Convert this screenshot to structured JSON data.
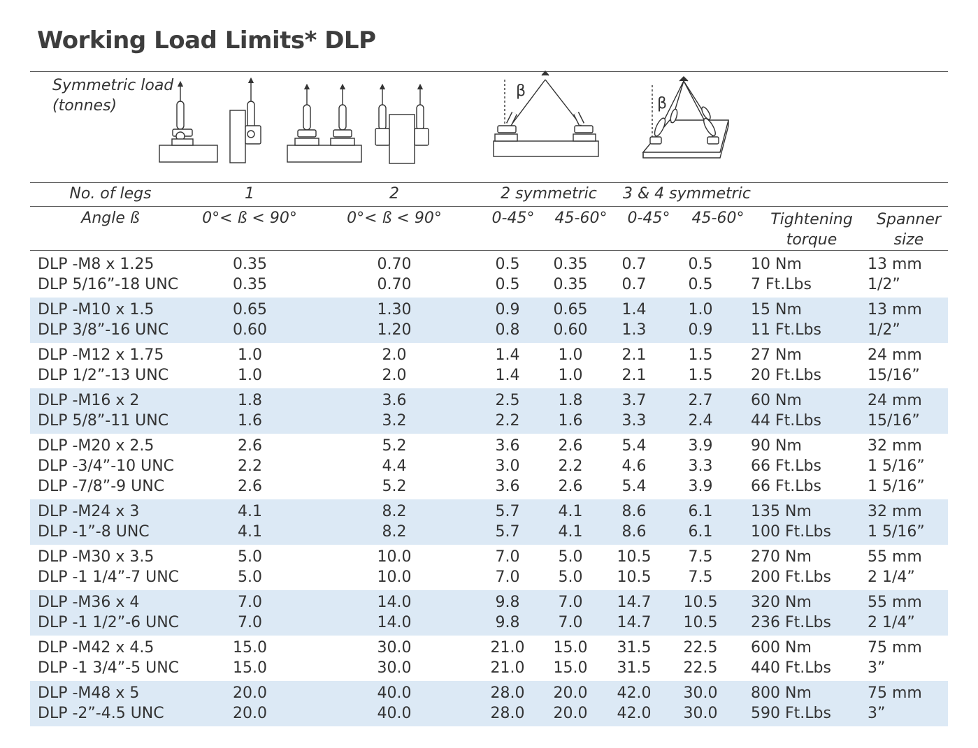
{
  "title": "Working Load Limits* DLP",
  "symmetric_load_label": [
    "Symmetric load",
    "(tonnes)"
  ],
  "beta_symbol": "β",
  "header": {
    "legs_label": "No. of legs",
    "legs": [
      "1",
      "2",
      "2 symmetric",
      "3 & 4 symmetric"
    ],
    "angle_label": "Angle ß",
    "angles": [
      "0°< ß < 90°",
      "0°< ß < 90°",
      "0-45°",
      "45-60°",
      "0-45°",
      "45-60°"
    ],
    "torque": [
      "Tightening",
      "torque"
    ],
    "spanner": [
      "Spanner",
      "size"
    ]
  },
  "groups": [
    {
      "rows": [
        [
          "DLP -M8 x 1.25",
          "0.35",
          "0.70",
          "0.5",
          "0.35",
          "0.7",
          "0.5",
          "10 Nm",
          "13 mm"
        ],
        [
          "DLP 5/16”-18 UNC",
          "0.35",
          "0.70",
          "0.5",
          "0.35",
          "0.7",
          "0.5",
          "7 Ft.Lbs",
          "1/2”"
        ]
      ]
    },
    {
      "rows": [
        [
          "DLP -M10 x 1.5",
          "0.65",
          "1.30",
          "0.9",
          "0.65",
          "1.4",
          "1.0",
          "15 Nm",
          "13 mm"
        ],
        [
          "DLP 3/8”-16 UNC",
          "0.60",
          "1.20",
          "0.8",
          "0.60",
          "1.3",
          "0.9",
          "11 Ft.Lbs",
          "1/2”"
        ]
      ]
    },
    {
      "rows": [
        [
          "DLP -M12 x 1.75",
          "1.0",
          "2.0",
          "1.4",
          "1.0",
          "2.1",
          "1.5",
          "27 Nm",
          "24 mm"
        ],
        [
          "DLP 1/2”-13 UNC",
          "1.0",
          "2.0",
          "1.4",
          "1.0",
          "2.1",
          "1.5",
          "20 Ft.Lbs",
          "15/16”"
        ]
      ]
    },
    {
      "rows": [
        [
          "DLP -M16 x 2",
          "1.8",
          "3.6",
          "2.5",
          "1.8",
          "3.7",
          "2.7",
          "60 Nm",
          "24 mm"
        ],
        [
          "DLP 5/8”-11 UNC",
          "1.6",
          "3.2",
          "2.2",
          "1.6",
          "3.3",
          "2.4",
          "44 Ft.Lbs",
          "15/16”"
        ]
      ]
    },
    {
      "rows": [
        [
          "DLP -M20 x 2.5",
          "2.6",
          "5.2",
          "3.6",
          "2.6",
          "5.4",
          "3.9",
          "90 Nm",
          "32 mm"
        ],
        [
          "DLP -3/4”-10 UNC",
          "2.2",
          "4.4",
          "3.0",
          "2.2",
          "4.6",
          "3.3",
          "66 Ft.Lbs",
          "1 5/16”"
        ],
        [
          "DLP -7/8”-9 UNC",
          "2.6",
          "5.2",
          "3.6",
          "2.6",
          "5.4",
          "3.9",
          "66 Ft.Lbs",
          "1 5/16”"
        ]
      ]
    },
    {
      "rows": [
        [
          "DLP -M24 x 3",
          "4.1",
          "8.2",
          "5.7",
          "4.1",
          "8.6",
          "6.1",
          "135 Nm",
          "32 mm"
        ],
        [
          "DLP -1”-8 UNC",
          "4.1",
          "8.2",
          "5.7",
          "4.1",
          "8.6",
          "6.1",
          "100 Ft.Lbs",
          "1 5/16”"
        ]
      ]
    },
    {
      "rows": [
        [
          "DLP -M30 x 3.5",
          "5.0",
          "10.0",
          "7.0",
          "5.0",
          "10.5",
          "7.5",
          "270 Nm",
          "55 mm"
        ],
        [
          "DLP -1 1/4”-7 UNC",
          "5.0",
          "10.0",
          "7.0",
          "5.0",
          "10.5",
          "7.5",
          "200 Ft.Lbs",
          "2 1/4”"
        ]
      ]
    },
    {
      "rows": [
        [
          "DLP -M36 x 4",
          "7.0",
          "14.0",
          "9.8",
          "7.0",
          "14.7",
          "10.5",
          "320 Nm",
          "55 mm"
        ],
        [
          "DLP -1 1/2”-6 UNC",
          "7.0",
          "14.0",
          "9.8",
          "7.0",
          "14.7",
          "10.5",
          "236 Ft.Lbs",
          "2 1/4”"
        ]
      ]
    },
    {
      "rows": [
        [
          "DLP -M42 x 4.5",
          "15.0",
          "30.0",
          "21.0",
          "15.0",
          "31.5",
          "22.5",
          "600 Nm",
          "75 mm"
        ],
        [
          "DLP -1 3/4”-5 UNC",
          "15.0",
          "30.0",
          "21.0",
          "15.0",
          "31.5",
          "22.5",
          "440 Ft.Lbs",
          "3”"
        ]
      ]
    },
    {
      "rows": [
        [
          "DLP -M48 x 5",
          "20.0",
          "40.0",
          "28.0",
          "20.0",
          "42.0",
          "30.0",
          "800 Nm",
          "75 mm"
        ],
        [
          "DLP -2”-4.5 UNC",
          "20.0",
          "40.0",
          "28.0",
          "20.0",
          "42.0",
          "30.0",
          "590 Ft.Lbs",
          "3”"
        ]
      ]
    }
  ]
}
